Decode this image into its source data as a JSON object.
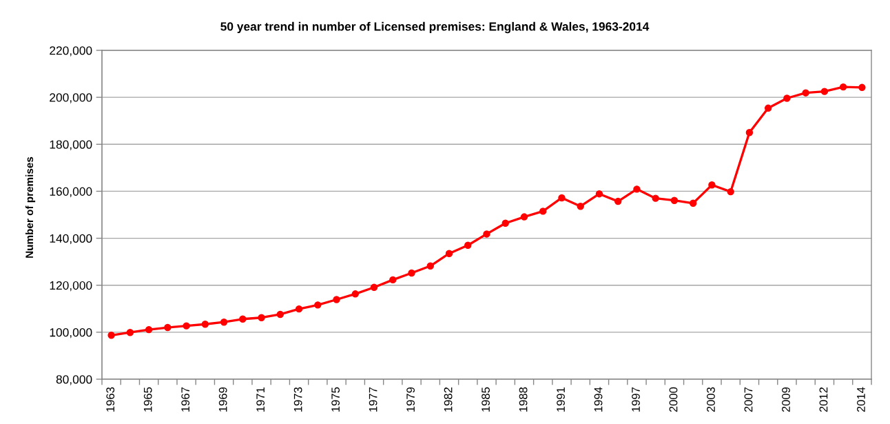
{
  "chart_data": {
    "type": "line",
    "title": "50 year trend in number of Licensed premises: England & Wales, 1963-2014",
    "ylabel": "Number of premises",
    "categories": [
      "1963",
      null,
      "1965",
      null,
      "1967",
      null,
      "1969",
      null,
      "1971",
      null,
      "1973",
      null,
      "1975",
      null,
      "1977",
      null,
      "1979",
      null,
      "1982",
      null,
      "1985",
      null,
      "1988",
      null,
      "1991",
      null,
      "1994",
      null,
      "1997",
      null,
      "2000",
      null,
      "2003",
      null,
      "2007",
      null,
      "2009",
      null,
      "2012",
      null,
      "2014"
    ],
    "series": [
      {
        "color": "#ff0000",
        "values": [
          98700,
          99900,
          101100,
          102000,
          102700,
          103400,
          104300,
          105600,
          106200,
          107600,
          109900,
          111600,
          113900,
          116300,
          119100,
          122300,
          125200,
          128200,
          133500,
          137000,
          141800,
          146400,
          149100,
          151500,
          157200,
          153600,
          158900,
          155700,
          160900,
          157000,
          156100,
          154900,
          162700,
          159800,
          185000,
          195400,
          199600,
          201900,
          202500,
          204400,
          204200
        ]
      }
    ],
    "ylim": [
      80000,
      220000
    ],
    "yticks": [
      {
        "value": 80000,
        "label": "80,000"
      },
      {
        "value": 100000,
        "label": "100,000"
      },
      {
        "value": 120000,
        "label": "120,000"
      },
      {
        "value": 140000,
        "label": "140,000"
      },
      {
        "value": 160000,
        "label": "160,000"
      },
      {
        "value": 180000,
        "label": "180,000"
      },
      {
        "value": 200000,
        "label": "200,000"
      },
      {
        "value": 220000,
        "label": "220,000"
      }
    ],
    "grid": "y",
    "marker": "circle",
    "line_style": "solid"
  }
}
